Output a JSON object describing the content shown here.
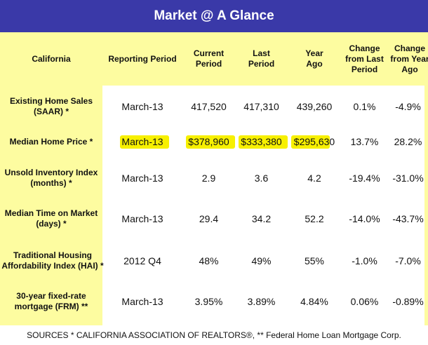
{
  "title": "Market @ A Glance",
  "columns": [
    "California",
    "Reporting Period",
    "Current\nPeriod",
    "Last\nPeriod",
    "Year\nAgo",
    "Change\nfrom Last\nPeriod",
    "Change\nfrom Year\nAgo"
  ],
  "rows": [
    {
      "label": "Existing Home Sales\n(SAAR)  *",
      "values": [
        "March-13",
        "417,520",
        "417,310",
        "439,260",
        "0.1%",
        "-4.9%"
      ]
    },
    {
      "label": "Median Home Price  *",
      "values": [
        "March-13",
        "$378,960",
        "$333,380",
        "$295,630",
        "13.7%",
        "28.2%"
      ]
    },
    {
      "label": "Unsold Inventory Index\n(months)  *",
      "values": [
        "March-13",
        "2.9",
        "3.6",
        "4.2",
        "-19.4%",
        "-31.0%"
      ]
    },
    {
      "label": "Median Time on Market\n(days)  *",
      "values": [
        "March-13",
        "29.4",
        "34.2",
        "52.2",
        "-14.0%",
        "-43.7%"
      ]
    },
    {
      "label": "Traditional Housing\nAffordability Index (HAI)  *",
      "values": [
        "2012 Q4",
        "48%",
        "49%",
        "55%",
        "-1.0%",
        "-7.0%"
      ]
    },
    {
      "label": "30-year fixed-rate\nmortgage (FRM)  **",
      "values": [
        "March-13",
        "3.95%",
        "3.89%",
        "4.84%",
        "0.06%",
        "-0.89%"
      ]
    }
  ],
  "footer": "SOURCES * CALIFORNIA ASSOCIATION OF REALTORS®, ** Federal Home Loan Mortgage Corp.",
  "colors": {
    "title_bg": "#3a39a8",
    "shade": "#fdfca0",
    "highlight": "#f7f000"
  }
}
